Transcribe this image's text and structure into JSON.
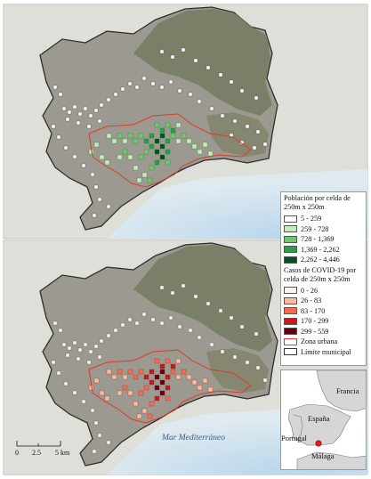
{
  "colors": {
    "background": "#ffffff",
    "sea": "#c9dff0",
    "land_grey": "#9a9890",
    "mountain": "#7c8067",
    "urban_outline": "#e03a2a",
    "municipal_outline": "#333333"
  },
  "legend": {
    "population": {
      "title": "Población por celda de 250m x 250m",
      "items": [
        {
          "label": "5 - 259",
          "color": "#ffffff"
        },
        {
          "label": "259 - 728",
          "color": "#c7e9c0"
        },
        {
          "label": "728 - 1,369",
          "color": "#74c476"
        },
        {
          "label": "1,369 - 2,262",
          "color": "#2f9a4d"
        },
        {
          "label": "2,262 - 4,446",
          "color": "#0b4d1f"
        }
      ]
    },
    "covid": {
      "title": "Casos de COVID-19 por celda de 250m x 250m",
      "items": [
        {
          "label": "0 - 26",
          "color": "#fff3ef"
        },
        {
          "label": "26 - 83",
          "color": "#fcbba1"
        },
        {
          "label": "83 - 170",
          "color": "#fb6a4a"
        },
        {
          "label": "170 - 299",
          "color": "#cb181d"
        },
        {
          "label": "299 - 559",
          "color": "#67000d"
        }
      ]
    },
    "zona_urbana": "Zona urbana",
    "limite_municipal": "Límite municipal"
  },
  "sea_label": "Mar Mediterráneo",
  "scalebar": {
    "labels": [
      "0",
      "2.5",
      "5 km"
    ]
  },
  "inset": {
    "labels": {
      "francia": "Francia",
      "espana": "España",
      "portugal": "Portugal",
      "malaga": "Málaga"
    },
    "marker_color": "#e02020"
  }
}
